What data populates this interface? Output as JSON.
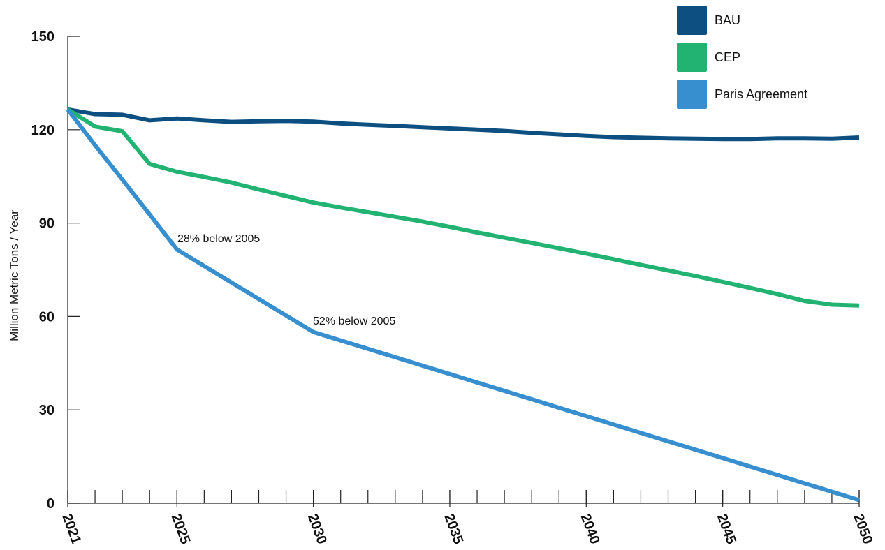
{
  "chart_data": {
    "type": "line",
    "y_label": "Million Metric Tons / Year",
    "x": [
      2021,
      2022,
      2023,
      2024,
      2025,
      2026,
      2027,
      2028,
      2029,
      2030,
      2031,
      2032,
      2033,
      2034,
      2035,
      2036,
      2037,
      2038,
      2039,
      2040,
      2041,
      2042,
      2043,
      2044,
      2045,
      2046,
      2047,
      2048,
      2049,
      2050
    ],
    "series": [
      {
        "name": "BAU",
        "color": "#0d4f80",
        "values": [
          126.5,
          125,
          124.8,
          123,
          123.6,
          123,
          122.5,
          122.7,
          122.8,
          122.6,
          122,
          121.6,
          121.2,
          120.8,
          120.4,
          120,
          119.6,
          119,
          118.5,
          118,
          117.6,
          117.4,
          117.2,
          117.1,
          117,
          117,
          117.2,
          117.2,
          117.1,
          117.5
        ]
      },
      {
        "name": "CEP",
        "color": "#22b373",
        "values": [
          126.5,
          121,
          119.5,
          109,
          106.5,
          104.8,
          103,
          100.8,
          98.7,
          96.6,
          95,
          93.5,
          92,
          90.5,
          88.8,
          87,
          85.3,
          83.6,
          81.9,
          80.2,
          78.4,
          76.6,
          74.8,
          73,
          71.1,
          69.2,
          67.2,
          65,
          63.8,
          63.5
        ]
      },
      {
        "name": "Paris Agreement",
        "color": "#378fcf",
        "values": [
          126.5,
          115,
          104,
          92.8,
          81.5,
          76.2,
          70.9,
          65.6,
          60.3,
          55,
          52.3,
          49.6,
          46.9,
          44.2,
          41.5,
          38.8,
          36.1,
          33.4,
          30.7,
          28,
          25.3,
          22.6,
          19.9,
          17.2,
          14.5,
          11.8,
          9.1,
          6.4,
          3.7,
          1
        ]
      }
    ],
    "annotations": [
      "28% below 2005",
      "52% below 2005"
    ],
    "xlim": [
      2021,
      2050
    ],
    "xticks": [
      2021,
      2025,
      2030,
      2035,
      2040,
      2045,
      2050
    ],
    "ylim": [
      0,
      150
    ],
    "yticks": [
      0,
      30,
      60,
      90,
      120,
      150
    ],
    "legend": "top-right"
  }
}
